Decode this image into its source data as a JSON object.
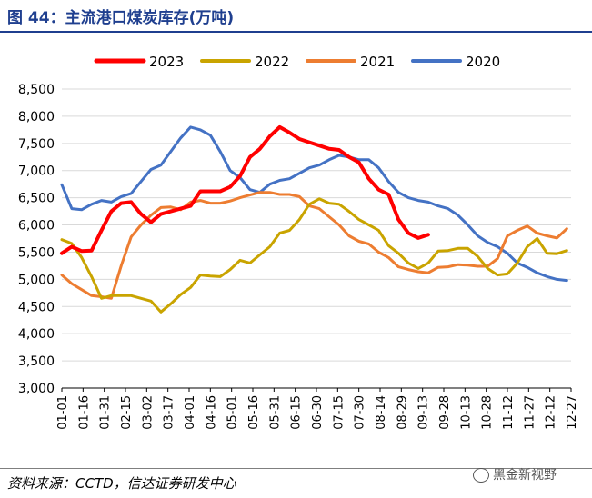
{
  "header": {
    "title": "图 44：主流港口煤炭库存(万吨)"
  },
  "footer": {
    "source": "资料来源：CCTD，信达证券研发中心",
    "watermark": "黑金新视野"
  },
  "chart_data": {
    "type": "line",
    "title": "",
    "xlabel": "",
    "ylabel": "",
    "ylim": [
      3000,
      8500
    ],
    "yticks": [
      3000,
      3500,
      4000,
      4500,
      5000,
      5500,
      6000,
      6500,
      7000,
      7500,
      8000,
      8500
    ],
    "ytick_labels": [
      "3,000",
      "3,500",
      "4,000",
      "4,500",
      "5,000",
      "5,500",
      "6,000",
      "6,500",
      "7,000",
      "7,500",
      "8,000",
      "8,500"
    ],
    "x_labels": [
      "01-01",
      "01-16",
      "01-31",
      "02-15",
      "03-02",
      "03-17",
      "04-01",
      "04-16",
      "05-01",
      "05-16",
      "05-31",
      "06-15",
      "06-30",
      "07-15",
      "07-30",
      "08-14",
      "08-29",
      "09-13",
      "09-28",
      "10-13",
      "10-28",
      "11-12",
      "11-27",
      "12-12",
      "12-27"
    ],
    "x_range": [
      1,
      361
    ],
    "grid": "horizontal",
    "legend_position": "top",
    "series": [
      {
        "name": "2023",
        "color": "#ff0000",
        "width": 4,
        "x": [
          1,
          8,
          15,
          22,
          29,
          36,
          43,
          50,
          57,
          64,
          71,
          78,
          85,
          92,
          99,
          106,
          113,
          120,
          127,
          134,
          141,
          148,
          155,
          162,
          169,
          176,
          183,
          190,
          197,
          204,
          211,
          218,
          225,
          232,
          239,
          246,
          253,
          260
        ],
        "y": [
          5480,
          5600,
          5520,
          5530,
          5900,
          6250,
          6400,
          6420,
          6200,
          6050,
          6200,
          6250,
          6300,
          6350,
          6620,
          6620,
          6620,
          6700,
          6900,
          7250,
          7400,
          7630,
          7800,
          7700,
          7580,
          7520,
          7460,
          7400,
          7380,
          7250,
          7150,
          6850,
          6650,
          6560,
          6100,
          5850,
          5760,
          5820
        ]
      },
      {
        "name": "2022",
        "color": "#c9a400",
        "width": 3,
        "x": [
          1,
          8,
          15,
          22,
          29,
          36,
          43,
          50,
          57,
          64,
          71,
          78,
          85,
          92,
          99,
          106,
          113,
          120,
          127,
          134,
          141,
          148,
          155,
          162,
          169,
          176,
          183,
          190,
          197,
          204,
          211,
          218,
          225,
          232,
          239,
          246,
          253,
          260,
          267,
          274,
          281,
          288,
          295,
          302,
          309,
          316,
          323,
          330,
          337,
          344,
          351,
          358
        ],
        "y": [
          5730,
          5660,
          5400,
          5050,
          4650,
          4700,
          4700,
          4700,
          4650,
          4600,
          4400,
          4550,
          4720,
          4850,
          5080,
          5060,
          5050,
          5180,
          5350,
          5300,
          5450,
          5600,
          5850,
          5900,
          6100,
          6380,
          6480,
          6400,
          6380,
          6250,
          6100,
          6000,
          5900,
          5620,
          5480,
          5300,
          5200,
          5300,
          5520,
          5530,
          5570,
          5570,
          5420,
          5200,
          5080,
          5100,
          5300,
          5600,
          5750,
          5480,
          5470,
          5530
        ]
      },
      {
        "name": "2021",
        "color": "#ed7d31",
        "width": 3,
        "x": [
          1,
          8,
          15,
          22,
          29,
          36,
          43,
          50,
          57,
          64,
          71,
          78,
          85,
          92,
          99,
          106,
          113,
          120,
          127,
          134,
          141,
          148,
          155,
          162,
          169,
          176,
          183,
          190,
          197,
          204,
          211,
          218,
          225,
          232,
          239,
          246,
          253,
          260,
          267,
          274,
          281,
          288,
          295,
          302,
          309,
          316,
          323,
          330,
          337,
          344,
          351,
          358
        ],
        "y": [
          5080,
          4920,
          4810,
          4700,
          4680,
          4650,
          5250,
          5780,
          6000,
          6180,
          6320,
          6330,
          6280,
          6420,
          6450,
          6400,
          6400,
          6440,
          6500,
          6550,
          6600,
          6600,
          6560,
          6560,
          6520,
          6350,
          6300,
          6150,
          6000,
          5800,
          5700,
          5650,
          5500,
          5400,
          5230,
          5180,
          5140,
          5120,
          5220,
          5230,
          5270,
          5260,
          5240,
          5240,
          5380,
          5800,
          5900,
          5980,
          5850,
          5800,
          5760,
          5930
        ]
      },
      {
        "name": "2020",
        "color": "#4472c4",
        "width": 3,
        "x": [
          1,
          8,
          15,
          22,
          29,
          36,
          43,
          50,
          57,
          64,
          71,
          78,
          85,
          92,
          99,
          106,
          113,
          120,
          127,
          134,
          141,
          148,
          155,
          162,
          169,
          176,
          183,
          190,
          197,
          204,
          211,
          218,
          225,
          232,
          239,
          246,
          253,
          260,
          267,
          274,
          281,
          288,
          295,
          302,
          309,
          316,
          323,
          330,
          337,
          344,
          351,
          358
        ],
        "y": [
          6740,
          6300,
          6280,
          6380,
          6450,
          6420,
          6520,
          6580,
          6800,
          7020,
          7100,
          7350,
          7600,
          7800,
          7750,
          7650,
          7350,
          7000,
          6870,
          6650,
          6600,
          6750,
          6820,
          6850,
          6950,
          7050,
          7100,
          7200,
          7280,
          7250,
          7200,
          7200,
          7050,
          6800,
          6600,
          6500,
          6450,
          6420,
          6350,
          6300,
          6180,
          6000,
          5800,
          5680,
          5600,
          5480,
          5300,
          5220,
          5120,
          5050,
          5000,
          4980
        ]
      }
    ]
  }
}
